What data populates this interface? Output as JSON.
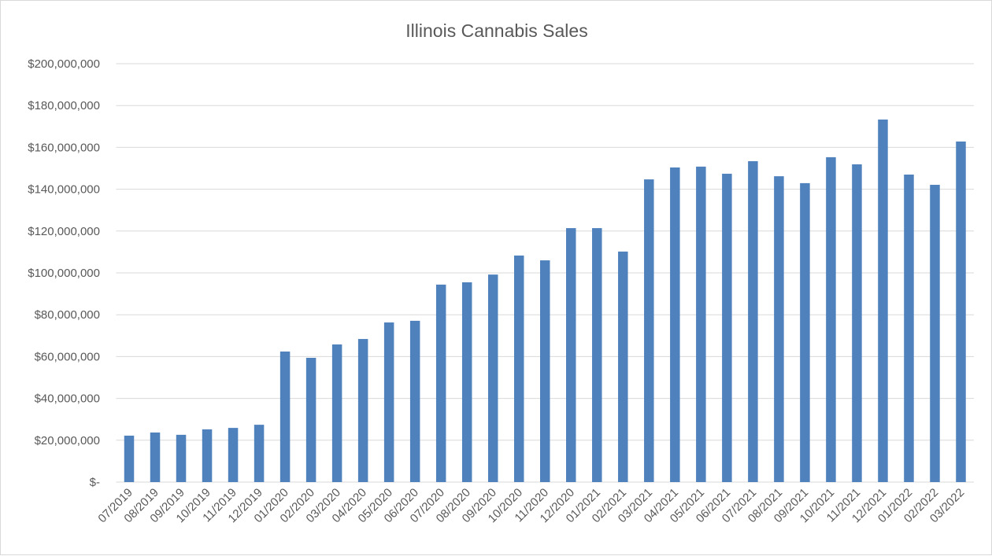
{
  "chart_data": {
    "type": "bar",
    "title": "Illinois Cannabis Sales",
    "xlabel": "",
    "ylabel": "",
    "ylim": [
      0,
      200000000
    ],
    "grid": true,
    "legend": "none",
    "bar_color": "#4f81bd",
    "yticks": [
      0,
      20000000,
      40000000,
      60000000,
      80000000,
      100000000,
      120000000,
      140000000,
      160000000,
      180000000,
      200000000
    ],
    "ytick_labels": [
      "$-",
      "$20,000,000",
      "$40,000,000",
      "$60,000,000",
      "$80,000,000",
      "$100,000,000",
      "$120,000,000",
      "$140,000,000",
      "$160,000,000",
      "$180,000,000",
      "$200,000,000"
    ],
    "categories": [
      "07/2019",
      "08/2019",
      "09/2019",
      "10/2019",
      "11/2019",
      "12/2019",
      "01/2020",
      "02/2020",
      "03/2020",
      "04/2020",
      "05/2020",
      "06/2020",
      "07/2020",
      "08/2020",
      "09/2020",
      "10/2020",
      "11/2020",
      "12/2020",
      "01/2021",
      "02/2021",
      "03/2021",
      "04/2021",
      "05/2021",
      "06/2021",
      "07/2021",
      "08/2021",
      "09/2021",
      "10/2021",
      "11/2021",
      "12/2021",
      "01/2022",
      "02/2022",
      "03/2022"
    ],
    "values": [
      22200000,
      23700000,
      22600000,
      25200000,
      25900000,
      27400000,
      62400000,
      59400000,
      65800000,
      68400000,
      76300000,
      77100000,
      94400000,
      95500000,
      99200000,
      108300000,
      106000000,
      121400000,
      121400000,
      110200000,
      144700000,
      150400000,
      150800000,
      147400000,
      153400000,
      146200000,
      142900000,
      155300000,
      151900000,
      173300000,
      147000000,
      142100000,
      162800000
    ]
  }
}
